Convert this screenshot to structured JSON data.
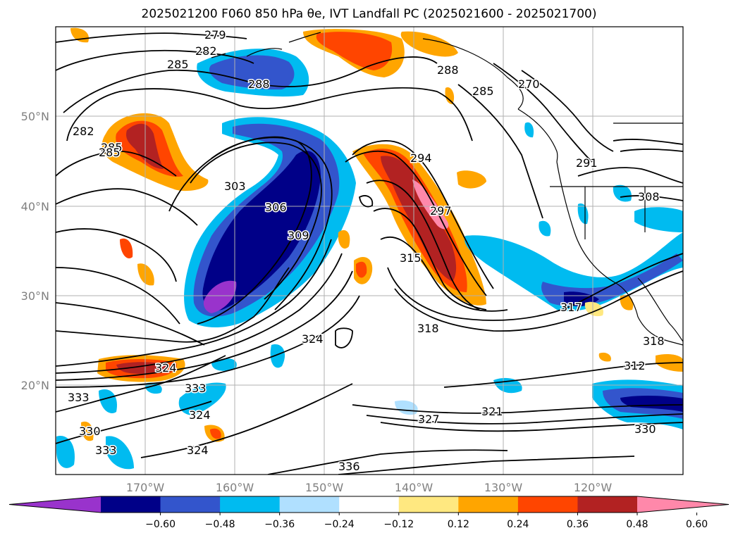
{
  "title": "2025021200 F060 850 hPa θe, IVT Landfall PC (2025021600 - 2025021700)",
  "map": {
    "lon_range": [
      -180,
      -110
    ],
    "lat_range": [
      10,
      60
    ],
    "x_ticks": [
      "170°W",
      "160°W",
      "150°W",
      "140°W",
      "130°W",
      "120°W"
    ],
    "y_ticks": [
      "20°N",
      "30°N",
      "40°N",
      "50°N"
    ],
    "gridlines": true,
    "filled_field": "IVT Landfall PC",
    "contour_field": "850 hPa θe",
    "contour_labels": [
      "279",
      "282",
      "285",
      "288",
      "285",
      "282",
      "285",
      "303",
      "306",
      "309",
      "294",
      "297",
      "315",
      "318",
      "324",
      "324",
      "333",
      "324",
      "324",
      "330",
      "333",
      "333",
      "336",
      "327",
      "321",
      "312",
      "318",
      "308",
      "291",
      "288",
      "285",
      "270",
      "317",
      "330"
    ]
  },
  "colorbar": {
    "colors": [
      "#9933cc",
      "#000088",
      "#3355cc",
      "#00bbf0",
      "#b0e0ff",
      "#ffffff",
      "#ffe880",
      "#ffa500",
      "#ff4500",
      "#b22222",
      "#ff88aa"
    ],
    "tick_labels": [
      "−0.60",
      "−0.48",
      "−0.36",
      "−0.24",
      "−0.12",
      "0.12",
      "0.24",
      "0.36",
      "0.48",
      "0.60"
    ]
  }
}
